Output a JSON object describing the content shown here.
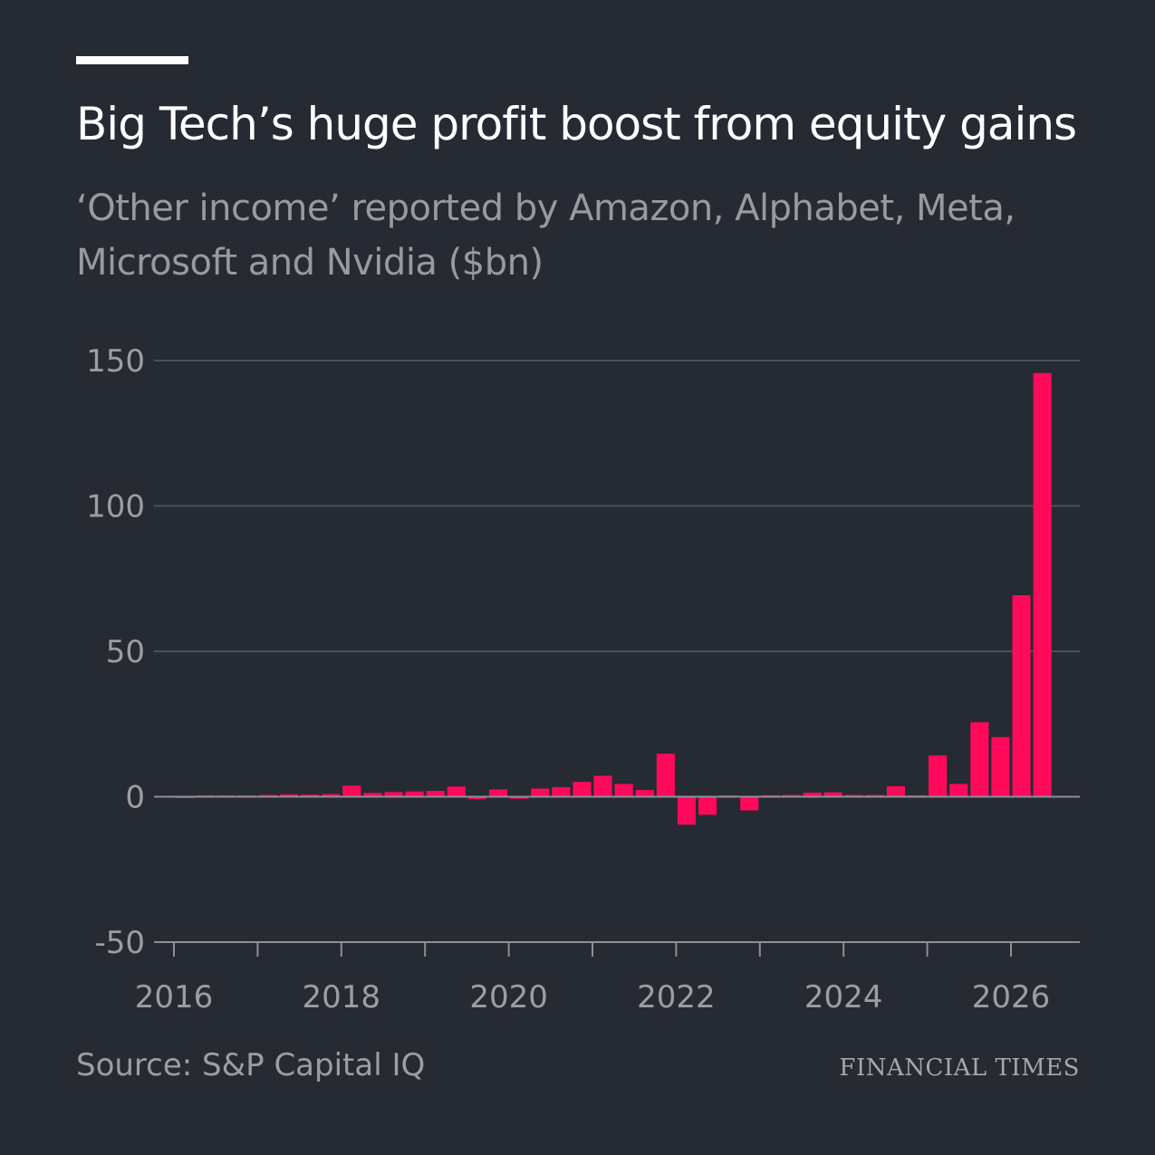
{
  "header": {
    "title": "Big Tech’s huge profit boost from equity gains",
    "subtitle": "‘Other income’ reported by Amazon, Alphabet, Meta, Microsoft and Nvidia ($bn)"
  },
  "footer": {
    "source": "Source: S&P Capital IQ",
    "brand": "FINANCIAL TIMES"
  },
  "colors": {
    "background": "#262a33",
    "bar": "#ff0a5a",
    "gridline": "#4c5059",
    "axis": "#8e9098",
    "text": "#9c9ea5"
  },
  "chart_data": {
    "type": "bar",
    "title": "Big Tech’s huge profit boost from equity gains",
    "subtitle": "‘Other income’ reported by Amazon, Alphabet, Meta, Microsoft and Nvidia ($bn)",
    "xlabel": "",
    "ylabel": "",
    "frequency": "quarterly",
    "ylim": [
      -50,
      150
    ],
    "yticks": [
      150,
      100,
      50,
      0,
      -50
    ],
    "xlim": [
      2016,
      2026.8
    ],
    "xticks": [
      2016,
      2018,
      2020,
      2022,
      2024,
      2026
    ],
    "grid": true,
    "legend": "none",
    "categories": [
      "2016 Q1",
      "2016 Q2",
      "2016 Q3",
      "2016 Q4",
      "2017 Q1",
      "2017 Q2",
      "2017 Q3",
      "2017 Q4",
      "2018 Q1",
      "2018 Q2",
      "2018 Q3",
      "2018 Q4",
      "2019 Q1",
      "2019 Q2",
      "2019 Q3",
      "2019 Q4",
      "2020 Q1",
      "2020 Q2",
      "2020 Q3",
      "2020 Q4",
      "2021 Q1",
      "2021 Q2",
      "2021 Q3",
      "2021 Q4",
      "2022 Q1",
      "2022 Q2",
      "2022 Q3",
      "2022 Q4",
      "2023 Q1",
      "2023 Q2",
      "2023 Q3",
      "2023 Q4",
      "2024 Q1",
      "2024 Q2",
      "2024 Q3",
      "2024 Q4",
      "2025 Q1",
      "2025 Q2",
      "2025 Q3",
      "2025 Q4",
      "2026 Q1",
      "2026 Q2"
    ],
    "values": [
      -0.3,
      0.1,
      0.3,
      0.2,
      0.6,
      0.8,
      0.7,
      0.9,
      3.8,
      1.3,
      1.6,
      1.8,
      2.0,
      3.5,
      -0.8,
      2.5,
      -0.7,
      2.8,
      3.3,
      5.1,
      7.2,
      4.4,
      2.3,
      14.8,
      -9.6,
      -6.2,
      0.2,
      -4.7,
      0.5,
      0.6,
      1.4,
      1.5,
      0.6,
      0.6,
      3.6,
      0.4,
      14.2,
      4.4,
      25.6,
      20.5,
      69.3,
      145.7
    ]
  }
}
